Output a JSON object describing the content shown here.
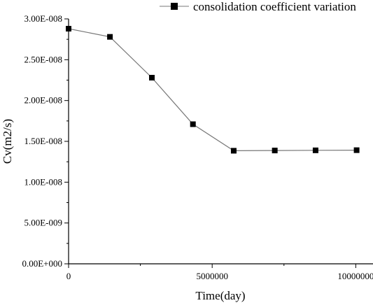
{
  "chart_data": {
    "type": "line",
    "title": "",
    "xlabel": "Time(day)",
    "ylabel": "Cv(m2/s)",
    "xlim": [
      0,
      10600000
    ],
    "ylim": [
      0,
      3e-08
    ],
    "x_ticks": [
      {
        "value": 0,
        "label": "0"
      },
      {
        "value": 5000000,
        "label": "5000000"
      },
      {
        "value": 10000000,
        "label": "10000000"
      }
    ],
    "y_ticks": [
      {
        "value": 0,
        "label": "0.00E+000"
      },
      {
        "value": 5e-09,
        "label": "5.00E-009"
      },
      {
        "value": 1e-08,
        "label": "1.00E-008"
      },
      {
        "value": 1.5e-08,
        "label": "1.50E-008"
      },
      {
        "value": 2e-08,
        "label": "2.00E-008"
      },
      {
        "value": 2.5e-08,
        "label": "2.50E-008"
      },
      {
        "value": 3e-08,
        "label": "3.00E-008"
      }
    ],
    "grid": false,
    "legend_position": "top-right",
    "series": [
      {
        "name": "consolidation coefficient variation",
        "marker": "square",
        "color": "#000000",
        "line_color": "#777777",
        "x": [
          0,
          1440000,
          2900000,
          4330000,
          5750000,
          7180000,
          8600000,
          10030000
        ],
        "y": [
          2.88e-08,
          2.78e-08,
          2.28e-08,
          1.71e-08,
          1.385e-08,
          1.388e-08,
          1.39e-08,
          1.392e-08
        ]
      }
    ]
  }
}
